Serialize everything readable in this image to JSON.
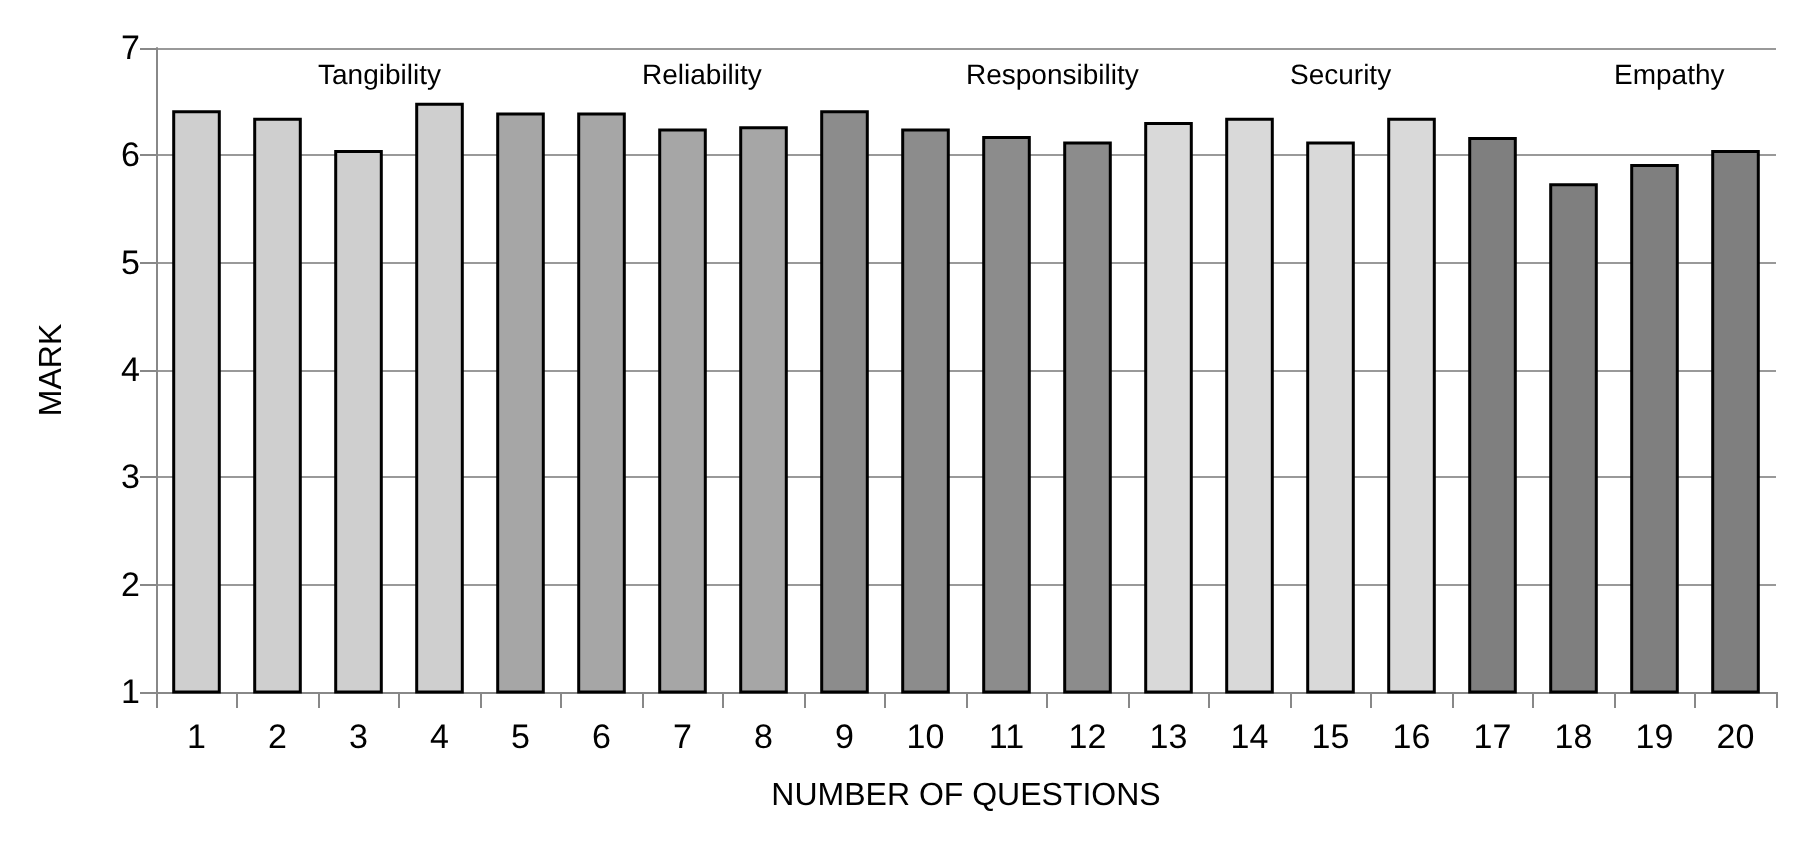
{
  "chart_data": {
    "type": "bar",
    "xlabel": "NUMBER OF QUESTIONS",
    "ylabel": "MARK",
    "categories": [
      "1",
      "2",
      "3",
      "4",
      "5",
      "6",
      "7",
      "8",
      "9",
      "10",
      "11",
      "12",
      "13",
      "14",
      "15",
      "16",
      "17",
      "18",
      "19",
      "20"
    ],
    "values": [
      6.42,
      6.35,
      6.05,
      6.49,
      6.4,
      6.4,
      6.25,
      6.27,
      6.42,
      6.25,
      6.18,
      6.13,
      6.31,
      6.35,
      6.13,
      6.35,
      6.17,
      5.74,
      5.92,
      6.05
    ],
    "colors": [
      "#cfcfcf",
      "#cfcfcf",
      "#cfcfcf",
      "#cfcfcf",
      "#a6a6a6",
      "#a6a6a6",
      "#a6a6a6",
      "#a6a6a6",
      "#8c8c8c",
      "#8c8c8c",
      "#8c8c8c",
      "#8c8c8c",
      "#d9d9d9",
      "#d9d9d9",
      "#d9d9d9",
      "#d9d9d9",
      "#7f7f7f",
      "#7f7f7f",
      "#7f7f7f",
      "#7f7f7f"
    ],
    "annotations": [
      "Tangibility",
      "Reliability",
      "Responsibility",
      "Security",
      "Empathy"
    ],
    "ylim": [
      1,
      7
    ],
    "yticks": [
      1,
      2,
      3,
      4,
      5,
      6,
      7
    ],
    "grid": "y"
  }
}
